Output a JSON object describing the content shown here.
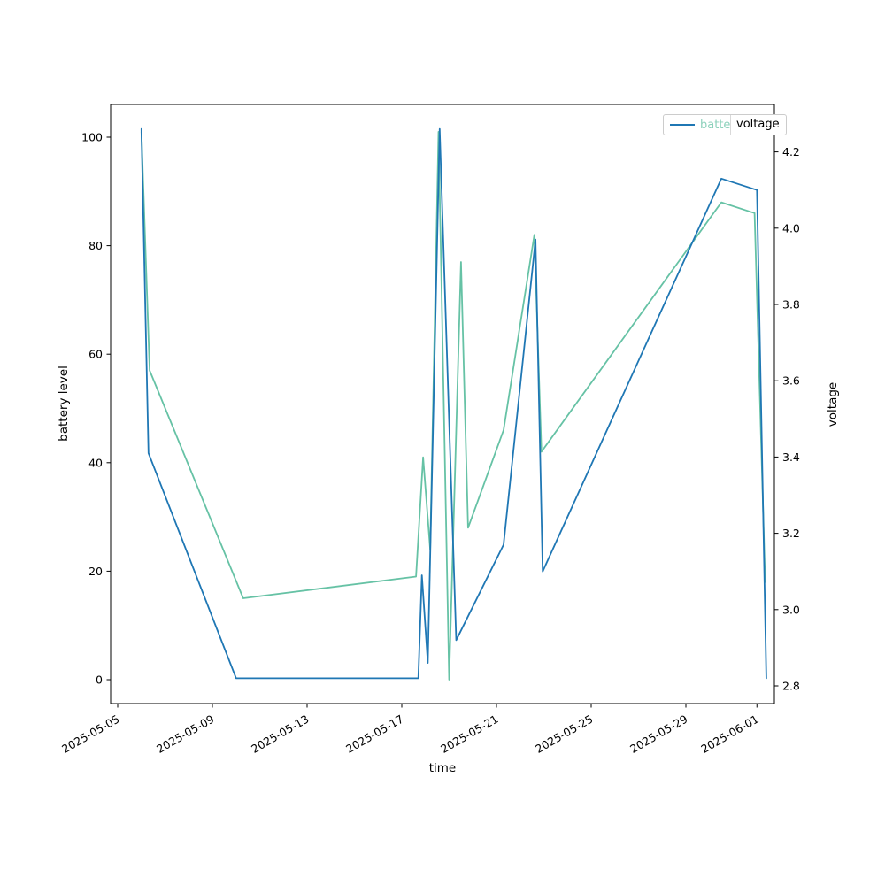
{
  "chart_data": {
    "type": "line",
    "title": "",
    "xlabel": "time",
    "ylabel_left": "battery level",
    "ylabel_right": "voltage",
    "grid": false,
    "legend_position": "upper-right",
    "x_unit": "days since 2025-05-05",
    "x_ticks": [
      {
        "day": 0,
        "label": "2025-05-05"
      },
      {
        "day": 4,
        "label": "2025-05-09"
      },
      {
        "day": 8,
        "label": "2025-05-13"
      },
      {
        "day": 12,
        "label": "2025-05-17"
      },
      {
        "day": 16,
        "label": "2025-05-21"
      },
      {
        "day": 20,
        "label": "2025-05-25"
      },
      {
        "day": 24,
        "label": "2025-05-29"
      },
      {
        "day": 27,
        "label": "2025-06-01"
      }
    ],
    "y_left_axis": {
      "label": "battery level",
      "ticks": [
        {
          "v": 0,
          "label": "0"
        },
        {
          "v": 20,
          "label": "20"
        },
        {
          "v": 40,
          "label": "40"
        },
        {
          "v": 60,
          "label": "60"
        },
        {
          "v": 80,
          "label": "80"
        },
        {
          "v": 100,
          "label": "100"
        }
      ],
      "range": [
        -5,
        106
      ]
    },
    "y_right_axis": {
      "label": "voltage",
      "ticks": [
        {
          "v": 2.8,
          "label": "2.8"
        },
        {
          "v": 3.0,
          "label": "3.0"
        },
        {
          "v": 3.2,
          "label": "3.2"
        },
        {
          "v": 3.4,
          "label": "3.4"
        },
        {
          "v": 3.6,
          "label": "3.6"
        },
        {
          "v": 3.8,
          "label": "3.8"
        },
        {
          "v": 4.0,
          "label": "4.0"
        },
        {
          "v": 4.2,
          "label": "4.2"
        }
      ],
      "range": [
        2.75,
        4.32
      ]
    },
    "series": [
      {
        "name": "battery level",
        "axis": "left",
        "color": "#66c2a5",
        "points": [
          [
            1.0,
            101
          ],
          [
            1.35,
            57
          ],
          [
            5.3,
            15
          ],
          [
            12.6,
            19
          ],
          [
            12.9,
            41
          ],
          [
            13.2,
            24
          ],
          [
            13.55,
            101
          ],
          [
            14.0,
            0
          ],
          [
            14.5,
            77
          ],
          [
            14.8,
            28
          ],
          [
            16.3,
            46
          ],
          [
            17.6,
            82
          ],
          [
            17.9,
            42
          ],
          [
            25.5,
            88
          ],
          [
            26.9,
            86
          ],
          [
            27.35,
            18
          ]
        ]
      },
      {
        "name": "voltage",
        "axis": "right",
        "color": "#1f77b4",
        "points": [
          [
            1.0,
            4.26
          ],
          [
            1.3,
            3.41
          ],
          [
            5.0,
            2.82
          ],
          [
            12.7,
            2.82
          ],
          [
            12.85,
            3.09
          ],
          [
            13.1,
            2.86
          ],
          [
            13.6,
            4.26
          ],
          [
            14.3,
            2.92
          ],
          [
            16.3,
            3.17
          ],
          [
            17.65,
            3.97
          ],
          [
            17.95,
            3.1
          ],
          [
            25.5,
            4.13
          ],
          [
            27.0,
            4.1
          ],
          [
            27.4,
            2.82
          ]
        ]
      }
    ],
    "legend": {
      "entries": [
        {
          "label": "battery level",
          "color": "#66c2a5"
        },
        {
          "label": "voltage",
          "color": "#1f77b4"
        }
      ]
    }
  }
}
